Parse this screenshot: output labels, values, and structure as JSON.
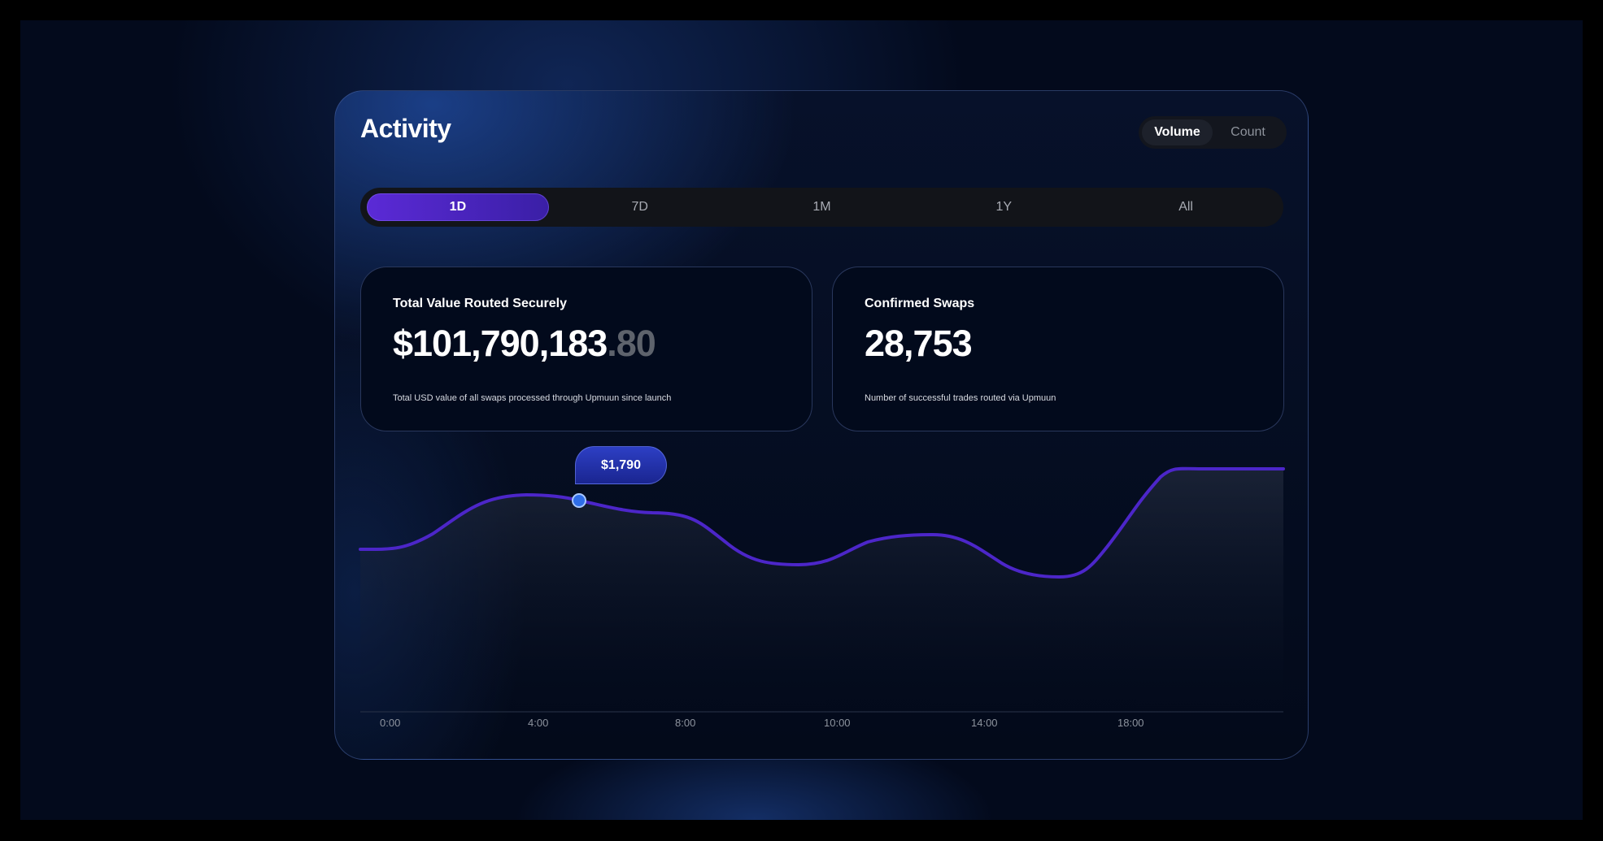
{
  "header": {
    "title": "Activity"
  },
  "metric_toggle": {
    "options": [
      "Volume",
      "Count"
    ],
    "selected": "Volume"
  },
  "range_tabs": {
    "options": [
      "1D",
      "7D",
      "1M",
      "1Y",
      "All"
    ],
    "selected": "1D"
  },
  "stats": {
    "total_value": {
      "title": "Total Value Routed Securely",
      "value_main": "$101,790,183",
      "value_cents": ".80",
      "description": "Total USD value of all swaps processed through Upmuun since launch"
    },
    "confirmed_swaps": {
      "title": "Confirmed Swaps",
      "value": "28,753",
      "description": "Number of successful trades routed via Upmuun"
    }
  },
  "chart": {
    "tooltip_value": "$1,790",
    "x_labels": [
      "0:00",
      "4:00",
      "8:00",
      "10:00",
      "14:00",
      "18:00"
    ],
    "colors": {
      "line": "#4c26c9",
      "marker": "#2f6ee8"
    }
  },
  "chart_data": {
    "type": "area",
    "x_ticks": [
      "0:00",
      "4:00",
      "8:00",
      "10:00",
      "14:00",
      "18:00"
    ],
    "annotations": [
      "$1,790"
    ],
    "grid": false,
    "legend": "none"
  }
}
